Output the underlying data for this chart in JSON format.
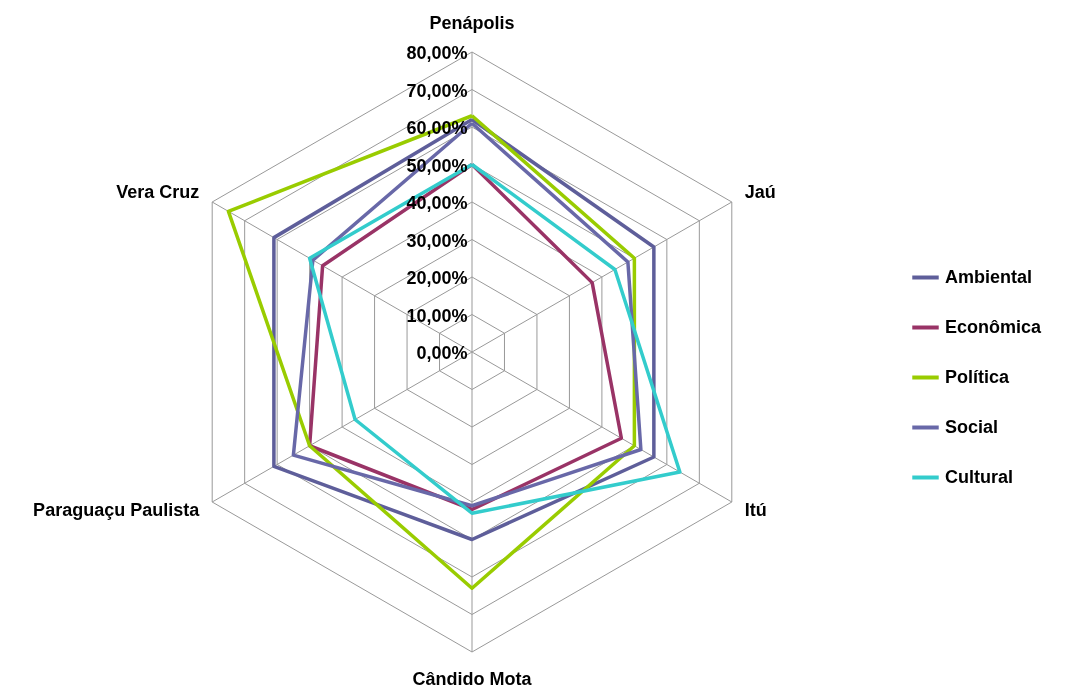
{
  "chart_data": {
    "type": "radar",
    "categories": [
      "Penápolis",
      "Jaú",
      "Itú",
      "Cândido Mota",
      "Paraguaçu Paulista",
      "Vera Cruz"
    ],
    "series": [
      {
        "name": "Ambiental",
        "color": "#5e5e9a",
        "values": [
          62,
          56,
          56,
          50,
          61,
          61
        ]
      },
      {
        "name": "Econômica",
        "color": "#993366",
        "values": [
          50,
          37,
          46,
          42,
          50,
          46
        ]
      },
      {
        "name": "Política",
        "color": "#99cc00",
        "values": [
          63,
          50,
          50,
          63,
          50,
          75
        ]
      },
      {
        "name": "Social",
        "color": "#6868a8",
        "values": [
          61,
          48,
          52,
          41,
          55,
          49
        ]
      },
      {
        "name": "Cultural",
        "color": "#33cccc",
        "values": [
          50,
          44,
          64,
          43,
          36,
          50
        ]
      }
    ],
    "ylim": [
      0,
      80
    ],
    "yticks": [
      {
        "value": 0,
        "label": "0,00%"
      },
      {
        "value": 10,
        "label": "10,00%"
      },
      {
        "value": 20,
        "label": "20,00%"
      },
      {
        "value": 30,
        "label": "30,00%"
      },
      {
        "value": 40,
        "label": "40,00%"
      },
      {
        "value": 50,
        "label": "50,00%"
      },
      {
        "value": 60,
        "label": "60,00%"
      },
      {
        "value": 70,
        "label": "70,00%"
      },
      {
        "value": 80,
        "label": "80,00%"
      }
    ],
    "grid": true,
    "legend": "right"
  }
}
